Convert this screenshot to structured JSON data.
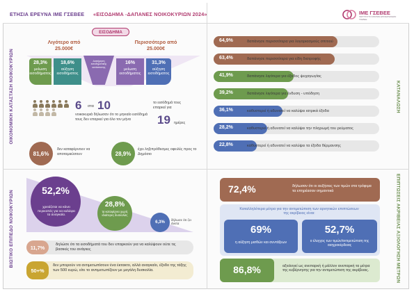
{
  "header": {
    "title_survey": "ΕΤΗΣΙΑ ΕΡΕΥΝΑ ΙΜΕ ΓΣΕΒΕΕ",
    "title_topic": "«ΕΙΣΟΔΗΜΑ -ΔΑΠΑΝΕΣ ΝΟΙΚΟΚΥΡΙΩΝ 2024»",
    "logo_text": "ΙΜΕ ΓΣΕΒΕΕ",
    "logo_sub": "ΙΝΣΤΙΤΟΥΤΟ ΜΙΚΡΩΝ ΕΠΙΧΕΙΡΗΣΕΩΝ ΓΣΕΒΕΕ"
  },
  "side_labels": {
    "economic": "ΟΙΚΟΝΟΜΙΚΗ ΚΑΤΑΣΤΑΣΗ ΝΟΙΚΟΚΥΡΙΩΝ",
    "consumption": "ΚΑΤΑΝΑΛΩΣΗ",
    "living": "ΒΙΩΤΙΚΟ ΕΠΙΠΕΔΟ ΝΟΙΚΟΚΥΡΙΩΝ",
    "measures": "ΕΠΙΠΤΩΣΕΙΣ ΑΚΡΙΒΕΙΑΣ ΑΞΙΟΛΟΓΗΣΗ ΜΕΤΡΩΝ"
  },
  "income": {
    "label": "ΕΙΣΟΔΗΜΑ",
    "less_than": "Λιγότερο από",
    "less_amount": "25.000€",
    "more_than": "Περισσότερο από",
    "more_amount": "25.000€",
    "blocks": [
      {
        "pct": "28,3%",
        "text": "μείωση εισοδήματος"
      },
      {
        "pct": "18,6%",
        "text": "αύξηση εισοδήματος"
      },
      {
        "pct": "",
        "text": "Διατήρηση εισοδηματικής κατάστασης"
      },
      {
        "pct": "16%",
        "text": "μείωση εισοδήματος"
      },
      {
        "pct": "31,3%",
        "text": "αύξηση εισοδήματος"
      }
    ]
  },
  "ratio": {
    "num": "6",
    "sep": "στα",
    "den": "10",
    "text": "νοικοκυριά δήλωσαν ότι το μηνιαίο εισόδημά τους δεν επαρκεί για όλο τον μήνα",
    "days_text": "το εισόδημά τους επαρκεί για",
    "days_num": "19",
    "days_unit": "ημέρες"
  },
  "savings": {
    "pct": "81,6%",
    "text": "δεν καταφέρνουν να αποταμιεύσουν"
  },
  "arrears": {
    "pct": "28,9%",
    "text": "έχει ληξιπρόθεσμες οφειλές προς το Δημόσιο"
  },
  "consumption_bars": [
    {
      "pct": "64,9%",
      "value": 64.9,
      "text": "δαπάνησε περισσότερα για λογαριασμούς σπιτιού",
      "color": "#a06a52"
    },
    {
      "pct": "63,4%",
      "value": 63.4,
      "text": "δαπάνησε περισσότερα για είδη διατροφής",
      "color": "#a06a52"
    },
    {
      "pct": "41,9%",
      "value": 41.9,
      "text": "δαπάνησε λιγότερα για έξοδος ψυχαγωγίας",
      "color": "#6e9b4e"
    },
    {
      "pct": "39,2%",
      "value": 39.2,
      "text": "δαπάνησε λιγότερα για ένδυση - υπόδηση",
      "color": "#6e9b4e"
    },
    {
      "pct": "36,1%",
      "value": 36.1,
      "text": "καθυστερεί ή αδυνατεί να καλύψει ιατρικά έξοδα",
      "color": "#4f6fb5"
    },
    {
      "pct": "28,2%",
      "value": 28.2,
      "text": "καθυστερεί ή αδυνατεί να καλύψει την πληρωμή του ρεύματος",
      "color": "#4f6fb5"
    },
    {
      "pct": "22,8%",
      "value": 22.8,
      "text": "καθυστερεί ή αδυνατεί να καλύψει τα έξοδα θέρμανσης",
      "color": "#4f6fb5"
    }
  ],
  "living": {
    "debt_pct": "52,2%",
    "debt_text": "χρειάζεται να κάνει περικοπές για να καλύψει τα αναγκαία.",
    "mid_pct": "28,8%",
    "mid_text": "τα καταφέρνει χωρίς ιδιαίτερες δυσκολίες",
    "low_pct": "6,3%",
    "low_text": "δήλωσε ότι ζει άνετα",
    "strip1_pct": "11,7%",
    "strip1_text": "δηλώσε ότι τα εισοδήματά του δεν επαρκούν για να καλύψουν ούτε τις βασικές του ανάγκες",
    "strip2_pct": "50+%",
    "strip2_text": "δεν μπορούν να αντιμετωπίσουν ένα έκτακτο, αλλά αναγκαίο, έξοδο της τάξης των 500 ευρώ, είτε το αντιμετωπίζουν με μεγάλη δυσκολία."
  },
  "measures": {
    "top_pct": "72,4%",
    "top_text": "δήλωσαν ότι οι αυξήσεις των τιμών στα τρόφιμα τα επηρέασαν σημαντικά",
    "header_text": "Καταλληλότερα μέτρα για την αντιμετώπιση των αρνητικών επιπτώσεων της ακρίβειας είναι:",
    "left_pct": "69%",
    "left_text": "η αύξηση μισθών και συντάξεων",
    "right_pct": "52,7%",
    "right_text": "ο έλεγχος των τιμών/αντιμετώπιση της αισχροκέρδειας",
    "bottom_pct": "86,8%",
    "bottom_text": "αξιολογεί ως ανεπαρκή ή μάλλον ανεπαρκή τα μέτρα της κυβέρνησης για την αντιμετώπιση της ακρίβειας."
  },
  "colors": {
    "purple": "#6b3f8e",
    "green": "#6e9b4e",
    "brown": "#a06a52",
    "blue": "#4f6fb5",
    "teal": "#3e8f8a",
    "pink": "#b03b6f"
  }
}
